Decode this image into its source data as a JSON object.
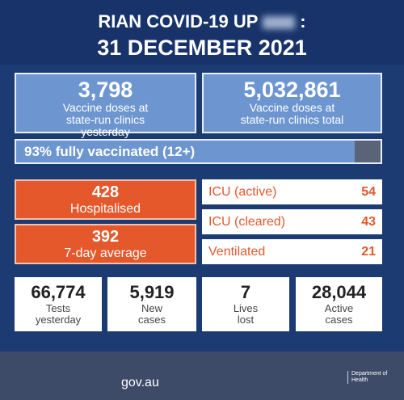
{
  "header": {
    "title": "RIAN COVID-19 UP",
    "title_end": ":",
    "date": "31 DECEMBER 2021"
  },
  "vaccines": [
    {
      "value": "3,798",
      "label": "Vaccine doses at state-run clinics yesterday"
    },
    {
      "value": "5,032,861",
      "label": "Vaccine doses at state-run clinics total"
    }
  ],
  "fully_vaccinated": {
    "label": "93% fully vaccinated (12+)",
    "percent": 93
  },
  "hospital": [
    {
      "value": "428",
      "label": "Hospitalised"
    },
    {
      "value": "392",
      "label": "7-day average"
    }
  ],
  "icu": [
    {
      "label": "ICU (active)",
      "value": "54"
    },
    {
      "label": "ICU (cleared)",
      "value": "43"
    },
    {
      "label": "Ventilated",
      "value": "21"
    }
  ],
  "stats": [
    {
      "value": "66,774",
      "label": "Tests yesterday"
    },
    {
      "value": "5,919",
      "label": "New cases"
    },
    {
      "value": "7",
      "label": "Lives lost"
    },
    {
      "value": "28,044",
      "label": "Active cases"
    }
  ],
  "footer": {
    "site": "gov.au",
    "department": "Department of Health"
  }
}
